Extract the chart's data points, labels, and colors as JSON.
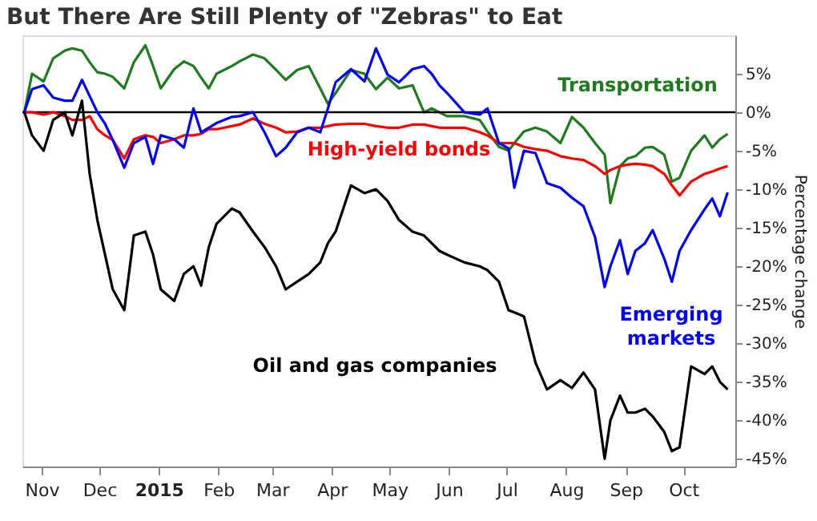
{
  "chart_data": {
    "type": "line",
    "title": "But There Are Still Plenty of \"Zebras\" to Eat",
    "ylabel": "Percentage change",
    "x": [
      "2014-10-23",
      "2014-10-27",
      "2014-11-02",
      "2014-11-07",
      "2014-11-13",
      "2014-11-17",
      "2014-11-22",
      "2014-11-26",
      "2014-11-30",
      "2014-12-04",
      "2014-12-08",
      "2014-12-14",
      "2014-12-19",
      "2014-12-25",
      "2014-12-29",
      "2015-01-02",
      "2015-01-09",
      "2015-01-14",
      "2015-01-19",
      "2015-01-23",
      "2015-01-27",
      "2015-01-31",
      "2015-02-08",
      "2015-02-12",
      "2015-02-19",
      "2015-02-25",
      "2015-03-03",
      "2015-03-08",
      "2015-03-14",
      "2015-03-20",
      "2015-03-26",
      "2015-03-30",
      "2015-04-03",
      "2015-04-11",
      "2015-04-18",
      "2015-04-24",
      "2015-04-30",
      "2015-05-06",
      "2015-05-13",
      "2015-05-19",
      "2015-05-23",
      "2015-05-27",
      "2015-05-31",
      "2015-06-09",
      "2015-06-17",
      "2015-06-21",
      "2015-06-27",
      "2015-07-02",
      "2015-07-05",
      "2015-07-10",
      "2015-07-16",
      "2015-07-22",
      "2015-07-29",
      "2015-08-04",
      "2015-08-10",
      "2015-08-16",
      "2015-08-21",
      "2015-08-24",
      "2015-08-29",
      "2015-09-02",
      "2015-09-06",
      "2015-09-11",
      "2015-09-15",
      "2015-09-21",
      "2015-09-25",
      "2015-09-29",
      "2015-10-05",
      "2015-10-12",
      "2015-10-16",
      "2015-10-20",
      "2015-10-24"
    ],
    "series": [
      {
        "name": "Transportation",
        "color": "#1e7b1e",
        "values": [
          0,
          5,
          4,
          7,
          8,
          8.3,
          8,
          6.5,
          5.2,
          5,
          4.6,
          3.1,
          6.5,
          8.7,
          6,
          3.1,
          5.6,
          6.6,
          6,
          4.5,
          3.1,
          5,
          6,
          6.6,
          7.5,
          7,
          5.5,
          4.2,
          5.5,
          6,
          3.1,
          1.1,
          2.5,
          5.5,
          5,
          3,
          4.5,
          3.1,
          3.5,
          0,
          0.5,
          0,
          -0.5,
          -0.5,
          -1,
          -2.5,
          -4.5,
          -5,
          -4,
          -2.5,
          -2,
          -2.5,
          -4,
          -0.6,
          -2,
          -4,
          -5.5,
          -11.8,
          -7,
          -6,
          -5.7,
          -4.6,
          -4.5,
          -5.5,
          -9,
          -8.5,
          -5,
          -3,
          -4.6,
          -3.5,
          -2.8
        ]
      },
      {
        "name": "High-yield bonds",
        "color": "#ff0000",
        "values": [
          0,
          0,
          -0.3,
          0,
          -0.5,
          -1,
          -1,
          -0.5,
          -2.2,
          -3,
          -3.6,
          -6,
          -3.5,
          -3,
          -3.2,
          -4,
          -3.5,
          -3,
          -3,
          -2.8,
          -2.2,
          -2.2,
          -1.8,
          -1.6,
          -0.8,
          -1.5,
          -2,
          -2.6,
          -2.5,
          -2,
          -2,
          -1.8,
          -1.6,
          -1.5,
          -1.5,
          -1.8,
          -2,
          -2,
          -1.6,
          -1.6,
          -1.8,
          -2,
          -2,
          -2,
          -2.6,
          -3,
          -4,
          -4,
          -4,
          -4.5,
          -4.8,
          -5,
          -5.7,
          -6,
          -6.2,
          -7,
          -8,
          -7.5,
          -7,
          -6.8,
          -6.7,
          -6.8,
          -7,
          -8,
          -9.5,
          -10.8,
          -9,
          -8,
          -7.7,
          -7.3,
          -7
        ]
      },
      {
        "name": "Emerging markets",
        "color": "#0000ff",
        "values": [
          0,
          3,
          3.5,
          1.9,
          1.5,
          1.5,
          4.2,
          2.1,
          0,
          -1.5,
          -3.6,
          -7.2,
          -4,
          -3.2,
          -6.7,
          -3,
          -3.5,
          -4.6,
          0.5,
          -2.6,
          -2,
          -1.4,
          -0.6,
          -0.5,
          0,
          -2.6,
          -5.7,
          -4.6,
          -2.6,
          -2,
          -2.6,
          0.5,
          3.9,
          5.6,
          4,
          8.3,
          4.9,
          3.9,
          5.6,
          6,
          5,
          3.5,
          2.5,
          0,
          -0.3,
          0.5,
          -4,
          -4.7,
          -9.8,
          -5,
          -5.3,
          -9.2,
          -9.8,
          -11.1,
          -12.2,
          -16.2,
          -22.7,
          -20,
          -16.6,
          -21,
          -18,
          -17,
          -15.3,
          -19,
          -22,
          -18,
          -15.3,
          -12.6,
          -11.2,
          -13.5,
          -10.4
        ]
      },
      {
        "name": "Oil and gas companies",
        "color": "#000000",
        "values": [
          0,
          -3,
          -5,
          -1,
          0,
          -3,
          1.5,
          -8,
          -14,
          -18.5,
          -23,
          -25.7,
          -16,
          -15.5,
          -18.5,
          -23,
          -24.5,
          -21,
          -20,
          -22.5,
          -17.5,
          -14.5,
          -12.5,
          -13,
          -15.5,
          -17.5,
          -20,
          -23,
          -22,
          -21,
          -19.5,
          -17,
          -15.5,
          -9.5,
          -10.5,
          -10,
          -11.5,
          -14,
          -15.5,
          -16,
          -17,
          -18,
          -18.5,
          -19.5,
          -20,
          -20.5,
          -22,
          -25.7,
          -26,
          -26.5,
          -32.5,
          -36,
          -34.8,
          -35.8,
          -33.8,
          -36,
          -45,
          -40,
          -36.8,
          -39,
          -39,
          -38.5,
          -39.5,
          -41.5,
          -44,
          -43.5,
          -33,
          -34,
          -33,
          -35,
          -36
        ]
      }
    ],
    "xlim": [
      "2014-10-22",
      "2015-10-28"
    ],
    "xticks": [
      {
        "value": "2014-11-01",
        "label": "Nov"
      },
      {
        "value": "2014-12-01",
        "label": "Dec"
      },
      {
        "value": "2015-01-01",
        "label": "2015"
      },
      {
        "value": "2015-02-01",
        "label": "Feb"
      },
      {
        "value": "2015-03-01",
        "label": "Mar"
      },
      {
        "value": "2015-04-01",
        "label": "Apr"
      },
      {
        "value": "2015-05-01",
        "label": "May"
      },
      {
        "value": "2015-06-01",
        "label": "Jun"
      },
      {
        "value": "2015-07-01",
        "label": "Jul"
      },
      {
        "value": "2015-08-01",
        "label": "Aug"
      },
      {
        "value": "2015-09-01",
        "label": "Sep"
      },
      {
        "value": "2015-10-01",
        "label": "Oct"
      }
    ],
    "ylim": [
      -46,
      10
    ],
    "yticks": [
      {
        "value": 5,
        "label": "5%"
      },
      {
        "value": 0,
        "label": "0%"
      },
      {
        "value": -5,
        "label": "-5%"
      },
      {
        "value": -10,
        "label": "-10%"
      },
      {
        "value": -15,
        "label": "-15%"
      },
      {
        "value": -20,
        "label": "-20%"
      },
      {
        "value": -25,
        "label": "-25%"
      },
      {
        "value": -30,
        "label": "-30%"
      },
      {
        "value": -35,
        "label": "-35%"
      },
      {
        "value": -40,
        "label": "-40%"
      },
      {
        "value": -45,
        "label": "-45%"
      }
    ],
    "ref_lines": [
      {
        "axis": "y",
        "value": 0,
        "color": "#000000"
      }
    ],
    "grid": false,
    "marker": "none",
    "line_style": "solid"
  }
}
